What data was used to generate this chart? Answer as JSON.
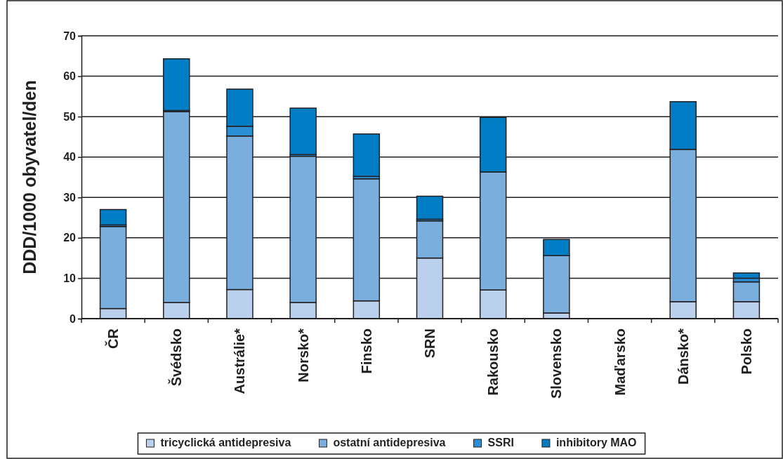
{
  "chart_data": {
    "type": "bar",
    "stacked": true,
    "ylabel": "DDD/1000 obyvatel/den",
    "categories": [
      "ČR",
      "Švédsko",
      "Austrálie*",
      "Norsko*",
      "Finsko",
      "SRN",
      "Rakousko",
      "Slovensko",
      "Maďarsko",
      "Dánsko*",
      "Polsko"
    ],
    "series": [
      {
        "name": "tricyclická antidepresiva",
        "color": "#bad0ec",
        "values": [
          2.5,
          4,
          7.2,
          4,
          4.4,
          15,
          7.1,
          1.4,
          null,
          4.2,
          4.2
        ]
      },
      {
        "name": "ostatní antidepresiva",
        "color": "#7aaedd",
        "values": [
          20.3,
          47.2,
          38,
          36.2,
          30.2,
          9.2,
          29.2,
          14.2,
          null,
          37.7,
          4.9
        ]
      },
      {
        "name": "SSRI",
        "color": "#2a8fd4",
        "values": [
          0.4,
          0.3,
          2.4,
          0.4,
          0.6,
          0.4,
          0,
          0,
          null,
          0,
          0.9
        ]
      },
      {
        "name": "inhibitory MAO",
        "color": "#007dc5",
        "values": [
          3.8,
          12.8,
          9.2,
          11.5,
          10.5,
          5.7,
          13.5,
          4,
          null,
          11.8,
          1.3
        ]
      }
    ],
    "ylim": [
      0,
      70
    ],
    "yticks": [
      0,
      10,
      20,
      30,
      40,
      50,
      60,
      70
    ],
    "grid": "y",
    "legend": "bottom"
  }
}
